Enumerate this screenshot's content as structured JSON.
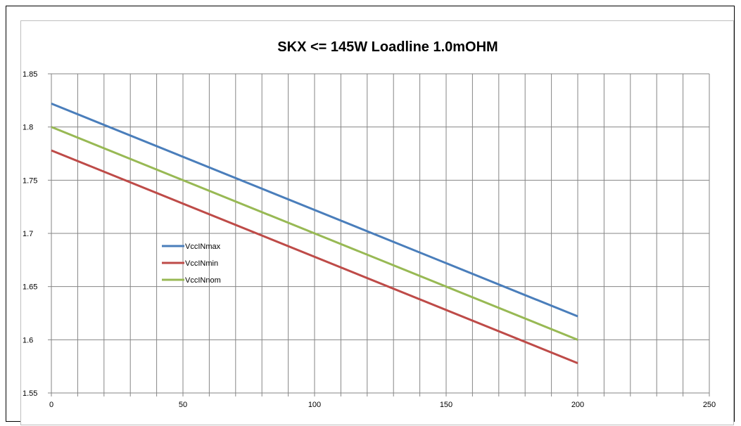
{
  "chart_data": {
    "type": "line",
    "title": "SKX <= 145W Loadline 1.0mOHM",
    "xlabel": "",
    "ylabel": "",
    "xlim": [
      0,
      250
    ],
    "ylim": [
      1.55,
      1.85
    ],
    "x_ticks": [
      0,
      50,
      100,
      150,
      200,
      250
    ],
    "x_tick_labels": [
      "0",
      "50",
      "100",
      "150",
      "200",
      "250"
    ],
    "y_ticks": [
      1.55,
      1.6,
      1.65,
      1.7,
      1.75,
      1.8,
      1.85
    ],
    "y_tick_labels": [
      "1.55",
      "1.6",
      "1.65",
      "1.7",
      "1.75",
      "1.8",
      "1.85"
    ],
    "x_gridlines_step": 10,
    "grid": true,
    "legend_position": "center-left",
    "series": [
      {
        "name": "VccINmax",
        "color": "#4a7ebb",
        "x": [
          0,
          200
        ],
        "y": [
          1.822,
          1.622
        ]
      },
      {
        "name": "VccINmin",
        "color": "#be4b48",
        "x": [
          0,
          200
        ],
        "y": [
          1.778,
          1.578
        ]
      },
      {
        "name": "VccINnom",
        "color": "#98b954",
        "x": [
          0,
          200
        ],
        "y": [
          1.8,
          1.6
        ]
      }
    ]
  }
}
